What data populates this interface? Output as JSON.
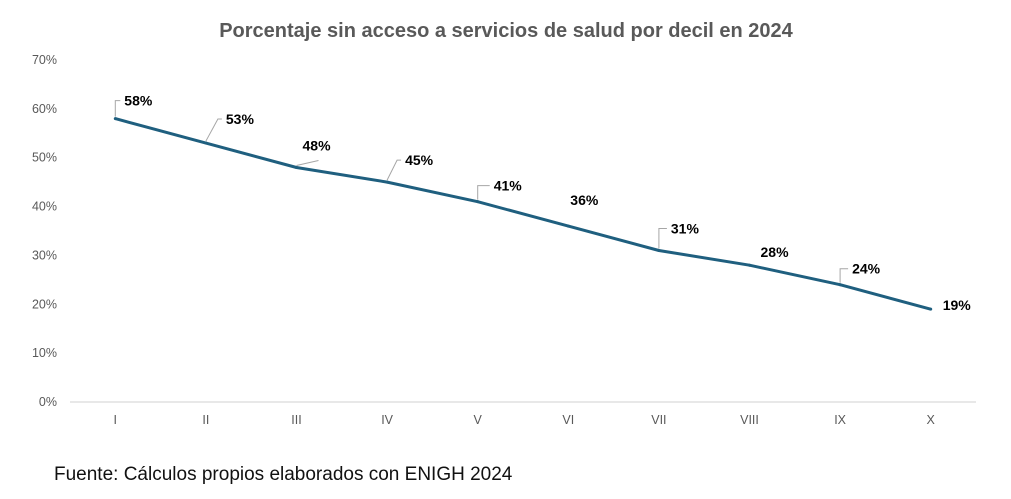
{
  "chart_data": {
    "type": "line",
    "title": "Porcentaje sin acceso a servicios de salud por decil en 2024",
    "xlabel": "",
    "ylabel": "",
    "categories": [
      "I",
      "II",
      "III",
      "IV",
      "V",
      "VI",
      "VII",
      "VIII",
      "IX",
      "X"
    ],
    "series": [
      {
        "name": "Porcentaje sin acceso a servicios de salud",
        "values": [
          58,
          53,
          48,
          45,
          41,
          36,
          31,
          28,
          24,
          19
        ],
        "labels": [
          "58%",
          "53%",
          "48%",
          "45%",
          "41%",
          "36%",
          "31%",
          "28%",
          "24%",
          "19%"
        ],
        "color": "#1f5f7f"
      }
    ],
    "ylim": [
      0,
      70
    ],
    "yticks": [
      0,
      10,
      20,
      30,
      40,
      50,
      60,
      70
    ],
    "ytick_labels": [
      "0%",
      "10%",
      "20%",
      "30%",
      "40%",
      "50%",
      "60%",
      "70%"
    ],
    "grid": false,
    "legend": "none",
    "data_labels": true
  },
  "footer": {
    "source": "Fuente: Cálculos propios elaborados con ENIGH 2024"
  }
}
